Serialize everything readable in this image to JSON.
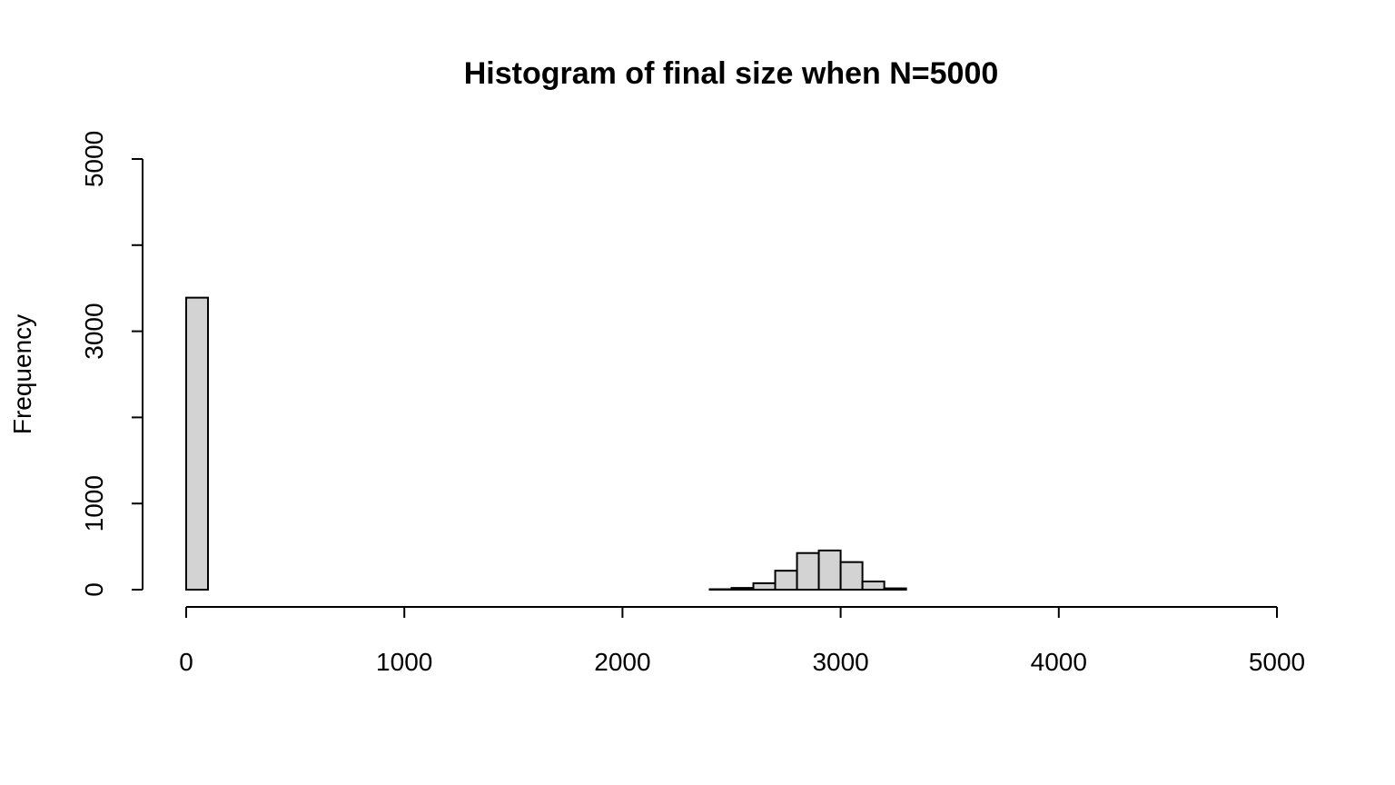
{
  "colors": {
    "bar_fill": "#d3d3d3",
    "bar_stroke": "#000000",
    "background": "#ffffff"
  },
  "chart_data": {
    "type": "bar",
    "title": "Histogram of final size when N=5000",
    "xlabel": "",
    "ylabel": "Frequency",
    "xlim": [
      0,
      5000
    ],
    "ylim": [
      0,
      5000
    ],
    "grid": false,
    "x_ticks": [
      0,
      1000,
      2000,
      3000,
      4000,
      5000
    ],
    "x_tick_labels": [
      "0",
      "1000",
      "2000",
      "3000",
      "4000",
      "5000"
    ],
    "y_ticks": [
      0,
      1000,
      2000,
      3000,
      4000,
      5000
    ],
    "y_tick_labels": [
      "0",
      "1000",
      "",
      "3000",
      "",
      "5000"
    ],
    "bin_width": 100,
    "bins": [
      {
        "x0": 0,
        "x1": 100,
        "count": 3390
      },
      {
        "x0": 100,
        "x1": 200,
        "count": 0
      },
      {
        "x0": 200,
        "x1": 300,
        "count": 0
      },
      {
        "x0": 300,
        "x1": 400,
        "count": 0
      },
      {
        "x0": 400,
        "x1": 500,
        "count": 0
      },
      {
        "x0": 500,
        "x1": 600,
        "count": 0
      },
      {
        "x0": 600,
        "x1": 700,
        "count": 0
      },
      {
        "x0": 700,
        "x1": 800,
        "count": 0
      },
      {
        "x0": 800,
        "x1": 900,
        "count": 0
      },
      {
        "x0": 900,
        "x1": 1000,
        "count": 0
      },
      {
        "x0": 1000,
        "x1": 1100,
        "count": 0
      },
      {
        "x0": 1100,
        "x1": 1200,
        "count": 0
      },
      {
        "x0": 1200,
        "x1": 1300,
        "count": 0
      },
      {
        "x0": 1300,
        "x1": 1400,
        "count": 0
      },
      {
        "x0": 1400,
        "x1": 1500,
        "count": 0
      },
      {
        "x0": 1500,
        "x1": 1600,
        "count": 0
      },
      {
        "x0": 1600,
        "x1": 1700,
        "count": 0
      },
      {
        "x0": 1700,
        "x1": 1800,
        "count": 0
      },
      {
        "x0": 1800,
        "x1": 1900,
        "count": 0
      },
      {
        "x0": 1900,
        "x1": 2000,
        "count": 0
      },
      {
        "x0": 2000,
        "x1": 2100,
        "count": 0
      },
      {
        "x0": 2100,
        "x1": 2200,
        "count": 0
      },
      {
        "x0": 2200,
        "x1": 2300,
        "count": 0
      },
      {
        "x0": 2300,
        "x1": 2400,
        "count": 0
      },
      {
        "x0": 2400,
        "x1": 2500,
        "count": 5
      },
      {
        "x0": 2500,
        "x1": 2600,
        "count": 20
      },
      {
        "x0": 2600,
        "x1": 2700,
        "count": 75
      },
      {
        "x0": 2700,
        "x1": 2800,
        "count": 220
      },
      {
        "x0": 2800,
        "x1": 2900,
        "count": 425
      },
      {
        "x0": 2900,
        "x1": 3000,
        "count": 455
      },
      {
        "x0": 3000,
        "x1": 3100,
        "count": 320
      },
      {
        "x0": 3100,
        "x1": 3200,
        "count": 95
      },
      {
        "x0": 3200,
        "x1": 3300,
        "count": 15
      }
    ]
  }
}
